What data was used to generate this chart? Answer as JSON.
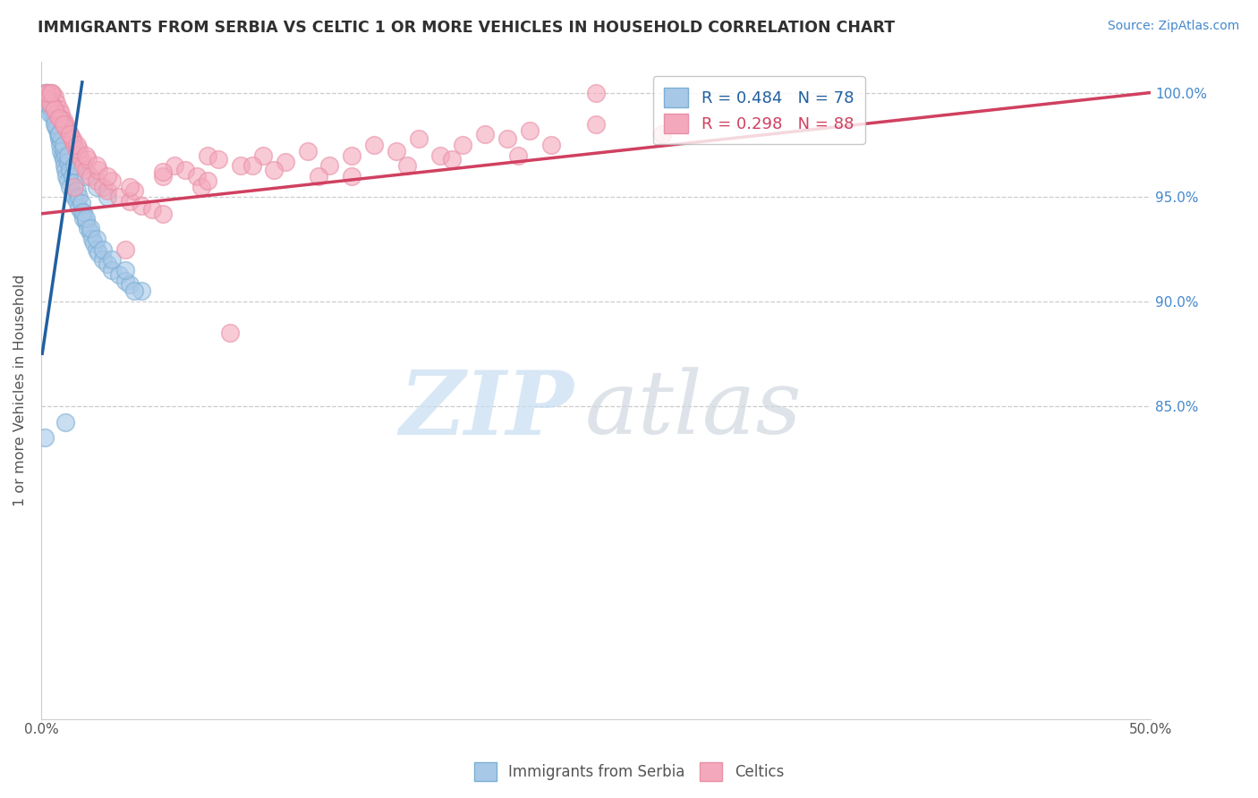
{
  "title": "IMMIGRANTS FROM SERBIA VS CELTIC 1 OR MORE VEHICLES IN HOUSEHOLD CORRELATION CHART",
  "source_text": "Source: ZipAtlas.com",
  "ylabel": "1 or more Vehicles in Household",
  "xlim": [
    0.0,
    50.0
  ],
  "ylim": [
    70.0,
    101.5
  ],
  "yticks": [
    85.0,
    90.0,
    95.0,
    100.0
  ],
  "ytick_labels": [
    "85.0%",
    "90.0%",
    "95.0%",
    "100.0%"
  ],
  "xtick_left": "0.0%",
  "xtick_right": "50.0%",
  "r_blue": 0.484,
  "n_blue": 78,
  "r_pink": 0.298,
  "n_pink": 88,
  "blue_color": "#a8c8e8",
  "pink_color": "#f4a8bc",
  "blue_edge_color": "#7bafd4",
  "pink_edge_color": "#e890a8",
  "blue_line_color": "#2060a0",
  "pink_line_color": "#d04060",
  "legend_label_blue": "Immigrants from Serbia",
  "legend_label_pink": "Celtics",
  "background_color": "#ffffff",
  "grid_color": "#cccccc",
  "title_color": "#303030",
  "axis_label_color": "#555555",
  "ytick_color": "#4488cc",
  "source_color": "#4488cc",
  "blue_scatter_x": [
    0.15,
    0.2,
    0.25,
    0.3,
    0.35,
    0.4,
    0.5,
    0.55,
    0.6,
    0.65,
    0.7,
    0.75,
    0.8,
    0.85,
    0.9,
    0.95,
    1.0,
    1.05,
    1.1,
    1.15,
    1.2,
    1.3,
    1.4,
    1.5,
    1.6,
    1.7,
    1.8,
    1.9,
    2.0,
    2.1,
    2.2,
    2.3,
    2.4,
    2.5,
    2.6,
    2.8,
    3.0,
    3.2,
    3.5,
    3.8,
    4.0,
    4.5,
    0.3,
    0.4,
    0.5,
    0.6,
    0.7,
    0.8,
    0.9,
    1.0,
    1.1,
    1.2,
    1.3,
    1.4,
    1.5,
    1.6,
    1.7,
    1.8,
    1.9,
    2.0,
    2.2,
    2.5,
    2.8,
    3.2,
    3.8,
    0.2,
    0.4,
    0.6,
    0.8,
    1.0,
    1.2,
    1.5,
    2.0,
    2.5,
    3.0,
    4.2,
    0.15,
    1.1
  ],
  "blue_scatter_y": [
    100.0,
    100.0,
    100.0,
    100.0,
    99.8,
    99.5,
    99.2,
    99.0,
    98.8,
    98.5,
    98.3,
    98.0,
    97.8,
    97.5,
    97.2,
    97.0,
    96.8,
    96.5,
    96.3,
    96.0,
    95.8,
    95.5,
    95.2,
    95.0,
    94.8,
    94.5,
    94.3,
    94.0,
    93.8,
    93.5,
    93.3,
    93.0,
    92.8,
    92.5,
    92.3,
    92.0,
    91.8,
    91.5,
    91.3,
    91.0,
    90.8,
    90.5,
    99.7,
    99.3,
    99.0,
    98.7,
    98.3,
    98.0,
    97.7,
    97.3,
    97.0,
    96.7,
    96.3,
    96.0,
    95.7,
    95.3,
    95.0,
    94.7,
    94.3,
    94.0,
    93.5,
    93.0,
    92.5,
    92.0,
    91.5,
    99.5,
    99.0,
    98.5,
    98.0,
    97.5,
    97.0,
    96.5,
    96.0,
    95.5,
    95.0,
    90.5,
    83.5,
    84.2
  ],
  "pink_scatter_x": [
    0.2,
    0.3,
    0.4,
    0.5,
    0.6,
    0.7,
    0.8,
    0.9,
    1.0,
    1.1,
    1.2,
    1.3,
    1.4,
    1.5,
    1.6,
    1.7,
    1.8,
    1.9,
    2.0,
    2.2,
    2.5,
    2.8,
    3.0,
    3.5,
    4.0,
    4.5,
    5.0,
    5.5,
    6.0,
    6.5,
    7.0,
    7.5,
    8.0,
    9.0,
    10.0,
    11.0,
    12.0,
    13.0,
    14.0,
    15.0,
    16.0,
    17.0,
    18.0,
    19.0,
    20.0,
    21.0,
    22.0,
    23.0,
    25.0,
    28.0,
    0.3,
    0.5,
    0.7,
    0.9,
    1.1,
    1.4,
    1.7,
    2.1,
    2.6,
    3.2,
    4.2,
    5.5,
    7.2,
    9.5,
    12.5,
    16.5,
    21.5,
    0.4,
    0.6,
    0.8,
    1.0,
    1.3,
    1.6,
    2.0,
    2.5,
    3.0,
    4.0,
    5.5,
    7.5,
    10.5,
    14.0,
    18.5,
    3.8,
    8.5,
    25.0,
    0.25,
    0.45,
    1.5
  ],
  "pink_scatter_y": [
    100.0,
    100.0,
    100.0,
    100.0,
    99.8,
    99.5,
    99.2,
    99.0,
    98.7,
    98.5,
    98.2,
    98.0,
    97.7,
    97.5,
    97.2,
    97.0,
    96.8,
    96.5,
    96.3,
    96.0,
    95.8,
    95.5,
    95.3,
    95.0,
    94.8,
    94.6,
    94.4,
    94.2,
    96.5,
    96.3,
    96.0,
    97.0,
    96.8,
    96.5,
    97.0,
    96.7,
    97.2,
    96.5,
    97.0,
    97.5,
    97.2,
    97.8,
    97.0,
    97.5,
    98.0,
    97.8,
    98.2,
    97.5,
    98.5,
    98.0,
    99.7,
    99.4,
    99.0,
    98.7,
    98.3,
    97.8,
    97.3,
    96.8,
    96.3,
    95.8,
    95.3,
    96.0,
    95.5,
    96.5,
    96.0,
    96.5,
    97.0,
    99.5,
    99.2,
    98.8,
    98.5,
    98.0,
    97.5,
    97.0,
    96.5,
    96.0,
    95.5,
    96.2,
    95.8,
    96.3,
    96.0,
    96.8,
    92.5,
    88.5,
    100.0,
    100.0,
    100.0,
    95.5
  ],
  "blue_trend_x": [
    0.05,
    1.85
  ],
  "blue_trend_y": [
    87.5,
    100.5
  ],
  "pink_trend_x": [
    0.0,
    50.0
  ],
  "pink_trend_y": [
    94.2,
    100.0
  ],
  "watermark_zip_color": "#c8ddf2",
  "watermark_atlas_color": "#d0d8e0"
}
